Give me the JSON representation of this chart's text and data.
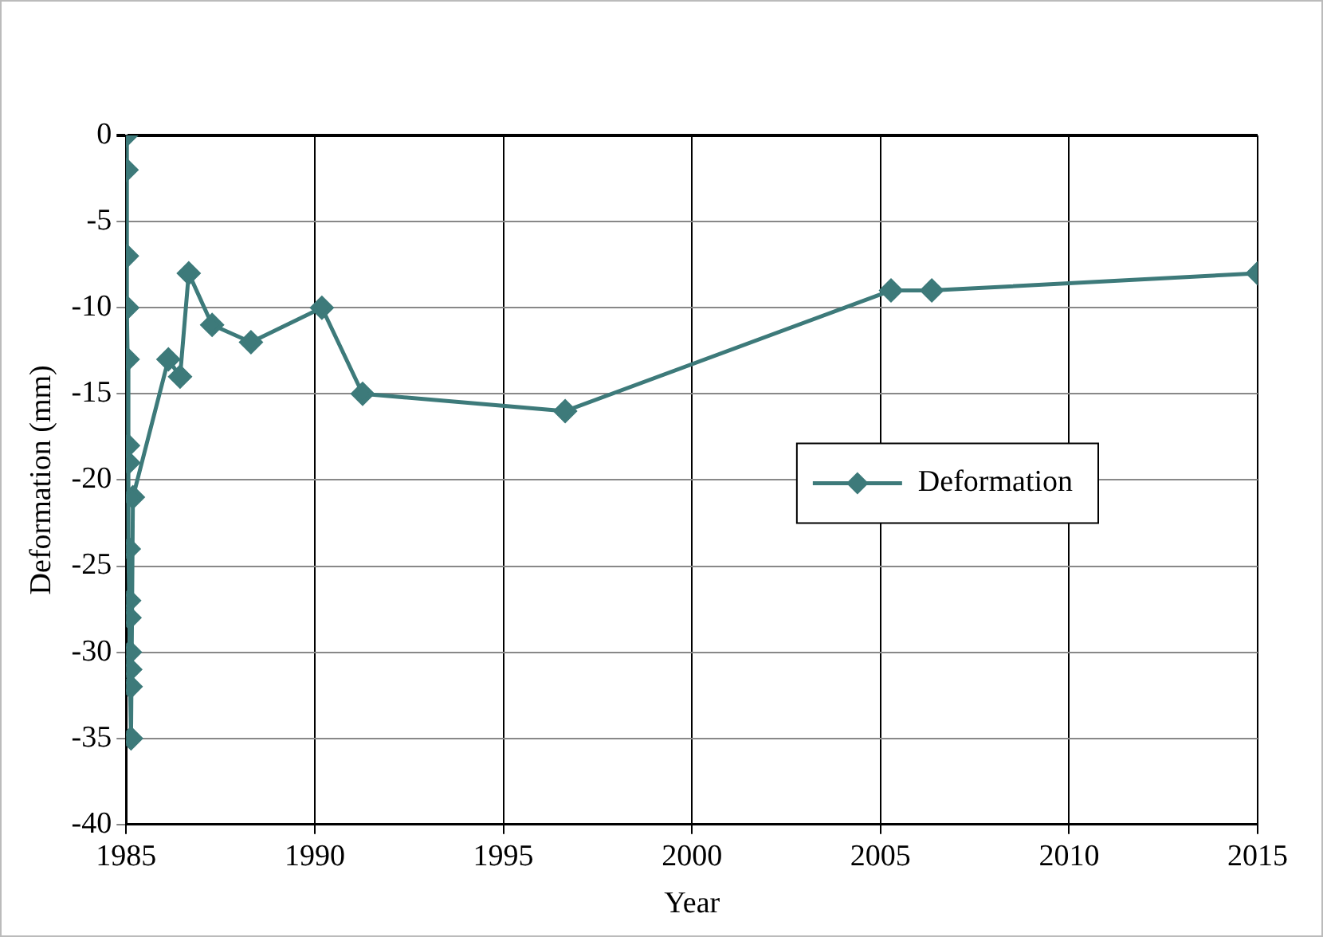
{
  "chart_data": {
    "type": "line",
    "xlabel": "Year",
    "ylabel": "Deformation (mm)",
    "x": [
      1985.0,
      1985.01,
      1985.02,
      1985.03,
      1985.04,
      1985.05,
      1985.06,
      1985.07,
      1985.08,
      1985.09,
      1985.1,
      1985.11,
      1985.12,
      1985.13,
      1985.18,
      1986.12,
      1986.43,
      1986.66,
      1987.28,
      1988.31,
      1990.19,
      1991.27,
      1996.64,
      2005.28,
      2006.36,
      2015.0
    ],
    "series": [
      {
        "name": "Deformation",
        "color": "#3d7a7a",
        "values": [
          0,
          -2,
          -7,
          -10,
          -13,
          -18,
          -19,
          -24,
          -27,
          -28,
          -30,
          -31,
          -32,
          -35,
          -21,
          -13,
          -14,
          -8,
          -11,
          -12,
          -10,
          -15,
          -16,
          -9,
          -9,
          -8
        ]
      }
    ],
    "xlim": [
      1985,
      2015
    ],
    "xticks": [
      1985,
      1990,
      1995,
      2000,
      2005,
      2010,
      2015
    ],
    "ylim": [
      -40,
      0
    ],
    "yticks": [
      -40,
      -35,
      -30,
      -25,
      -20,
      -15,
      -10,
      -5,
      0
    ],
    "grid": true,
    "legend": "right",
    "marker": "diamond",
    "line_style": "solid"
  }
}
